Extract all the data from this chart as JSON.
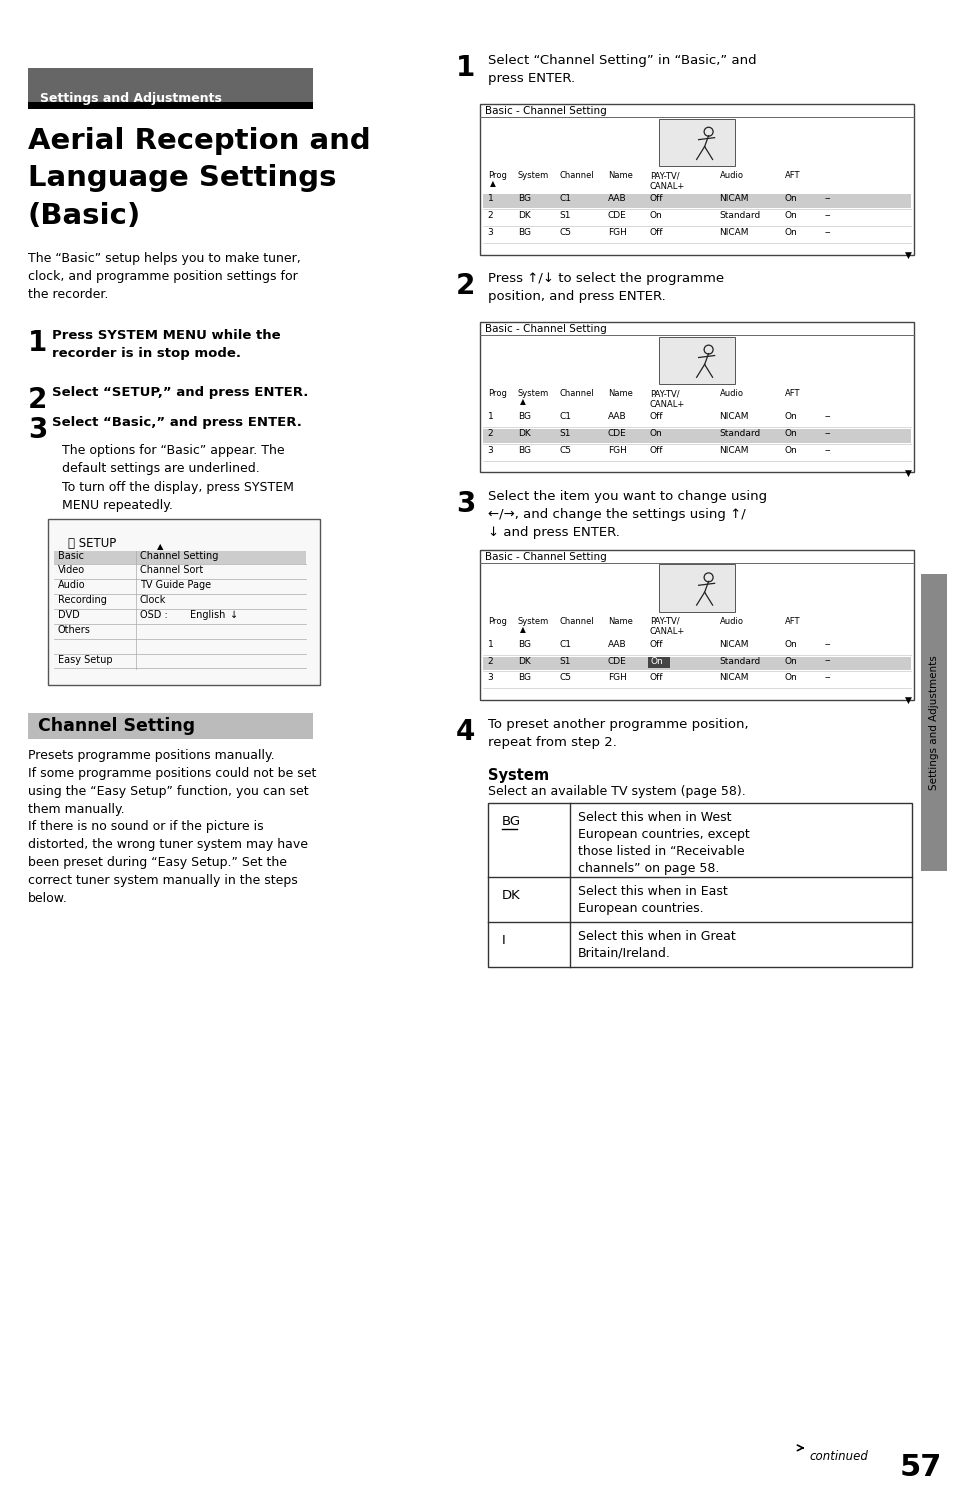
{
  "page_bg": "#ffffff",
  "header_bg": "#666666",
  "header_text": "Settings and Adjustments",
  "header_text_color": "#ffffff",
  "title_lines": [
    "Aerial Reception and",
    "Language Settings",
    "(Basic)"
  ],
  "intro_text": "The “Basic” setup helps you to make tuner,\nclock, and programme position settings for\nthe recorder.",
  "step1_bold": "Press SYSTEM MENU while the\nrecorder is in stop mode.",
  "step2_bold": "Select “SETUP,” and press ENTER.",
  "step3_bold": "Select “Basic,” and press ENTER.",
  "step3_sub1": "The options for “Basic” appear. The\ndefault settings are underlined.",
  "step3_sub2": "To turn off the display, press SYSTEM\nMENU repeatedly.",
  "channel_setting_title": "Channel Setting",
  "channel_setting_bg": "#bbbbbb",
  "channel_text1": "Presets programme positions manually.\nIf some programme positions could not be set\nusing the “Easy Setup” function, you can set\nthem manually.",
  "channel_text2": "If there is no sound or if the picture is\ndistorted, the wrong tuner system may have\nbeen preset during “Easy Setup.” Set the\ncorrect tuner system manually in the steps\nbelow.",
  "right_step1": "Select “Channel Setting” in “Basic,” and\npress ENTER.",
  "right_step2": "Press ↑/↓ to select the programme\nposition, and press ENTER.",
  "right_step3": "Select the item you want to change using\n←/→, and change the settings using ↑/\n↓ and press ENTER.",
  "right_step4": "To preset another programme position,\nrepeat from step 2.",
  "system_title": "System",
  "system_subtitle": "Select an available TV system (page 58).",
  "system_rows": [
    [
      "BG",
      true,
      "Select this when in West\nEuropean countries, except\nthose listed in “Receivable\nchannels” on page 58."
    ],
    [
      "DK",
      false,
      "Select this when in East\nEuropean countries."
    ],
    [
      "I",
      false,
      "Select this when in Great\nBritain/Ireland."
    ]
  ],
  "right_tab_text": "Settings and Adjustments",
  "page_number": "57",
  "continued_text": "continued"
}
